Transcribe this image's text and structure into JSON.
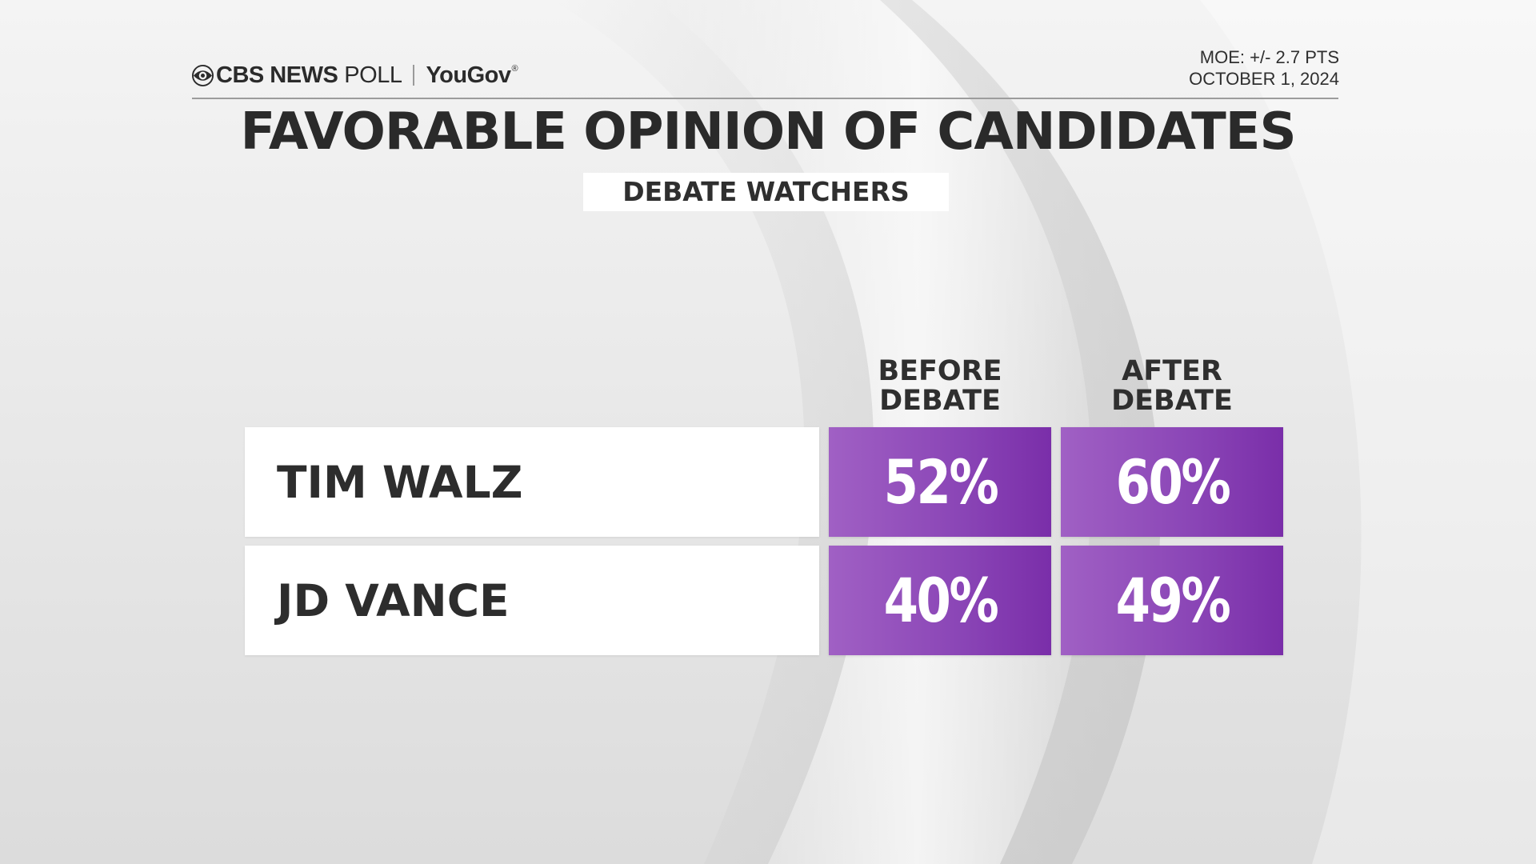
{
  "header": {
    "brand_primary": "CBS NEWS",
    "brand_secondary": "POLL",
    "partner": "YouGov",
    "partner_mark": "®",
    "moe": "MOE: +/- 2.7 PTS",
    "date": "OCTOBER 1, 2024"
  },
  "title": "FAVORABLE OPINION OF CANDIDATES",
  "subtitle": "DEBATE WATCHERS",
  "columns": [
    {
      "line1": "BEFORE",
      "line2": "DEBATE"
    },
    {
      "line1": "AFTER",
      "line2": "DEBATE"
    }
  ],
  "rows": [
    {
      "label": "TIM WALZ",
      "cells": [
        "52%",
        "60%"
      ]
    },
    {
      "label": "JD VANCE",
      "cells": [
        "40%",
        "49%"
      ]
    }
  ],
  "colors": {
    "accent_purple": "#8a45b6",
    "background": "#e9e9e9",
    "text": "#2f2f2f"
  },
  "chart_data": {
    "type": "table",
    "title": "FAVORABLE OPINION OF CANDIDATES",
    "subtitle": "DEBATE WATCHERS",
    "categories": [
      "TIM WALZ",
      "JD VANCE"
    ],
    "series": [
      {
        "name": "BEFORE DEBATE",
        "values": [
          52,
          40
        ]
      },
      {
        "name": "AFTER DEBATE",
        "values": [
          60,
          49
        ]
      }
    ],
    "unit": "%"
  }
}
